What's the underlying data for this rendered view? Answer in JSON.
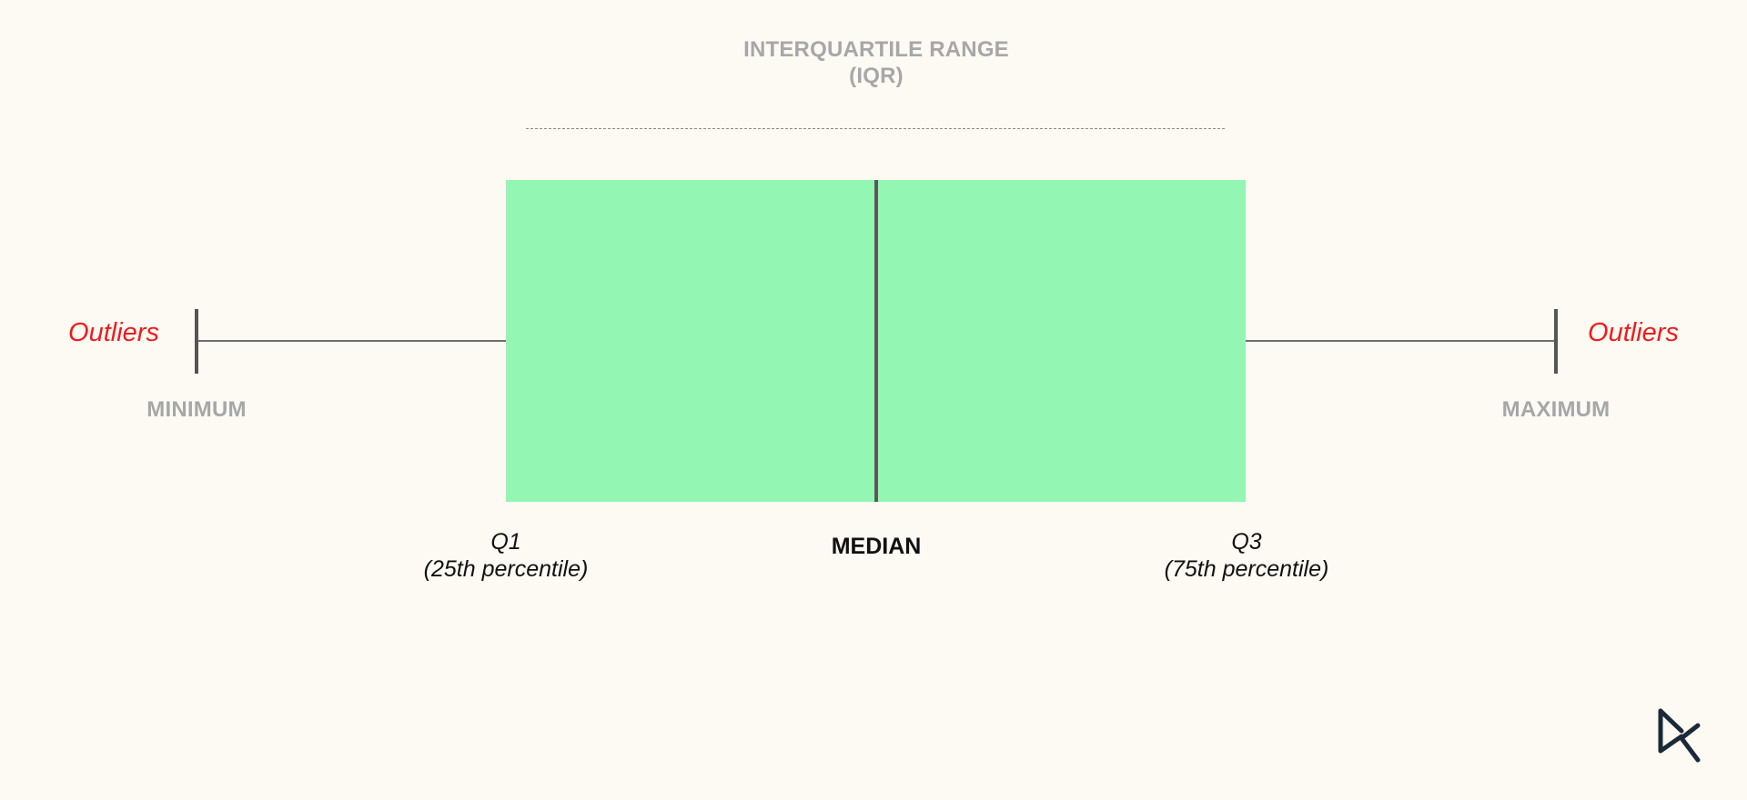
{
  "iqr": {
    "line1": "INTERQUARTILE RANGE",
    "line2": "(IQR)"
  },
  "minimum": "MINIMUM",
  "maximum": "MAXIMUM",
  "outliers_left": "Outliers",
  "outliers_right": "Outliers",
  "q1": {
    "line1": "Q1",
    "line2": "(25th percentile)"
  },
  "median": "MEDIAN",
  "q3": {
    "line1": "Q3",
    "line2": "(75th percentile)"
  },
  "colors": {
    "background": "#fdf9f3",
    "box_fill": "#93f6b3",
    "outlier_text": "#ee1c1c",
    "muted_label": "#a6a7a8",
    "logo": "#1b2a3a"
  },
  "logo_icon": "datacamp-logo-icon"
}
